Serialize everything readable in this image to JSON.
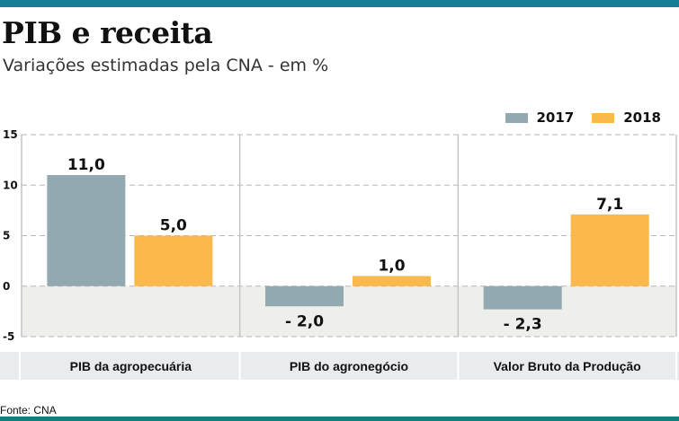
{
  "header": {
    "title": "PIB e receita",
    "subtitle": "Variações estimadas pela CNA - em %"
  },
  "footer": {
    "source": "Fonte: CNA"
  },
  "colors": {
    "accent_bar": "#157e97",
    "bottom_bar": "#137e7c",
    "series_2017": "#93a9b1",
    "series_2018": "#fbb84b",
    "negative_band": "#eeeeeb",
    "category_band": "#e8ecef"
  },
  "chart_data": {
    "type": "bar",
    "title": "PIB e receita",
    "subtitle": "Variações estimadas pela CNA - em %",
    "xlabel": "",
    "ylabel": "",
    "categories": [
      "PIB da agropecuária",
      "PIB do agronegócio",
      "Valor Bruto da Produção"
    ],
    "series": [
      {
        "name": "2017",
        "values": [
          11.0,
          -2.0,
          -2.3
        ],
        "labels": [
          "11,0",
          "- 2,0",
          "- 2,3"
        ]
      },
      {
        "name": "2018",
        "values": [
          5.0,
          1.0,
          7.1
        ],
        "labels": [
          "5,0",
          "1,0",
          "7,1"
        ]
      }
    ],
    "ylim": [
      -5,
      15
    ],
    "yticks": [
      15,
      10,
      5,
      0,
      -5
    ],
    "ytick_labels": [
      "15",
      "10",
      "5",
      "0",
      "-5"
    ],
    "grid": true,
    "legend": {
      "placement": "top-right",
      "entries": [
        "2017",
        "2018"
      ]
    }
  }
}
